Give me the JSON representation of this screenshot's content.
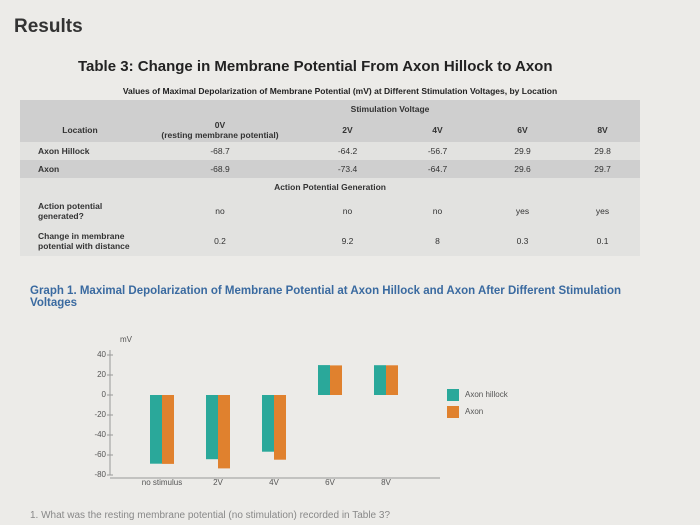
{
  "heading": "Results",
  "table": {
    "title": "Table 3: Change in Membrane Potential From Axon Hillock to Axon",
    "caption": "Values of Maximal Depolarization of Membrane Potential (mV) at Different Stimulation Voltages, by Location",
    "group_header": "Stimulation Voltage",
    "columns": [
      "Location",
      "0V",
      "2V",
      "4V",
      "6V",
      "8V"
    ],
    "column_note": "(resting membrane potential)",
    "rows": [
      [
        "Axon Hillock",
        "-68.7",
        "-64.2",
        "-56.7",
        "29.9",
        "29.8"
      ],
      [
        "Axon",
        "-68.9",
        "-73.4",
        "-64.7",
        "29.6",
        "29.7"
      ]
    ],
    "section": "Action Potential Generation",
    "section_rows": [
      [
        "Action potential generated?",
        "no",
        "no",
        "no",
        "yes",
        "yes"
      ],
      [
        "Change in membrane potential with distance",
        "0.2",
        "9.2",
        "8",
        "0.3",
        "0.1"
      ]
    ]
  },
  "chart_data": {
    "type": "bar",
    "title": "Graph 1. Maximal Depolarization of Membrane Potential at Axon Hillock and Axon After Different Stimulation Voltages",
    "y_label": "mV",
    "categories": [
      "no stimulus",
      "2V",
      "4V",
      "6V",
      "8V"
    ],
    "series": [
      {
        "name": "Axon hillock",
        "color": "#2aa89a",
        "values": [
          -68.7,
          -64.2,
          -56.7,
          29.9,
          29.8
        ]
      },
      {
        "name": "Axon",
        "color": "#e0812e",
        "values": [
          -68.9,
          -73.4,
          -64.7,
          29.6,
          29.7
        ]
      }
    ],
    "ylim": [
      -80,
      40
    ],
    "yticks": [
      40,
      20,
      0,
      -20,
      -40,
      -60,
      -80
    ]
  },
  "question": "1. What was the resting membrane potential (no stimulation) recorded in Table 3?"
}
